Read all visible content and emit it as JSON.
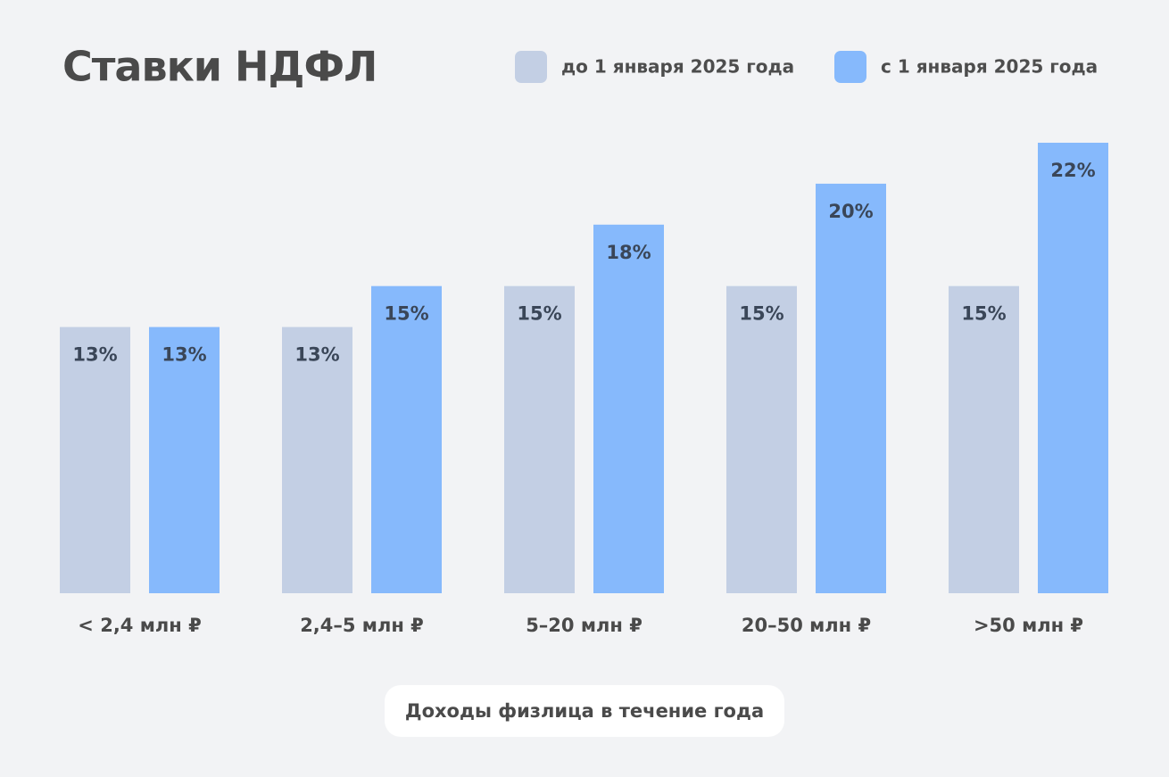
{
  "chart_data": {
    "type": "bar",
    "title": "Ставки НДФЛ",
    "categories": [
      "< 2,4 млн ₽",
      "2,4–5 млн ₽",
      "5–20 млн ₽",
      "20–50 млн ₽",
      ">50 млн ₽"
    ],
    "series": [
      {
        "name": "до 1 января 2025 года",
        "color": "#c3cfe4",
        "values": [
          13,
          13,
          15,
          15,
          15
        ],
        "value_labels": [
          "13%",
          "13%",
          "15%",
          "15%",
          "15%"
        ]
      },
      {
        "name": "с 1 января 2025 года",
        "color": "#86b9fc",
        "values": [
          13,
          15,
          18,
          20,
          22
        ],
        "value_labels": [
          "13%",
          "15%",
          "18%",
          "20%",
          "22%"
        ]
      }
    ],
    "x_label": "Доходы физлица в течение года",
    "legend": "top-right"
  }
}
